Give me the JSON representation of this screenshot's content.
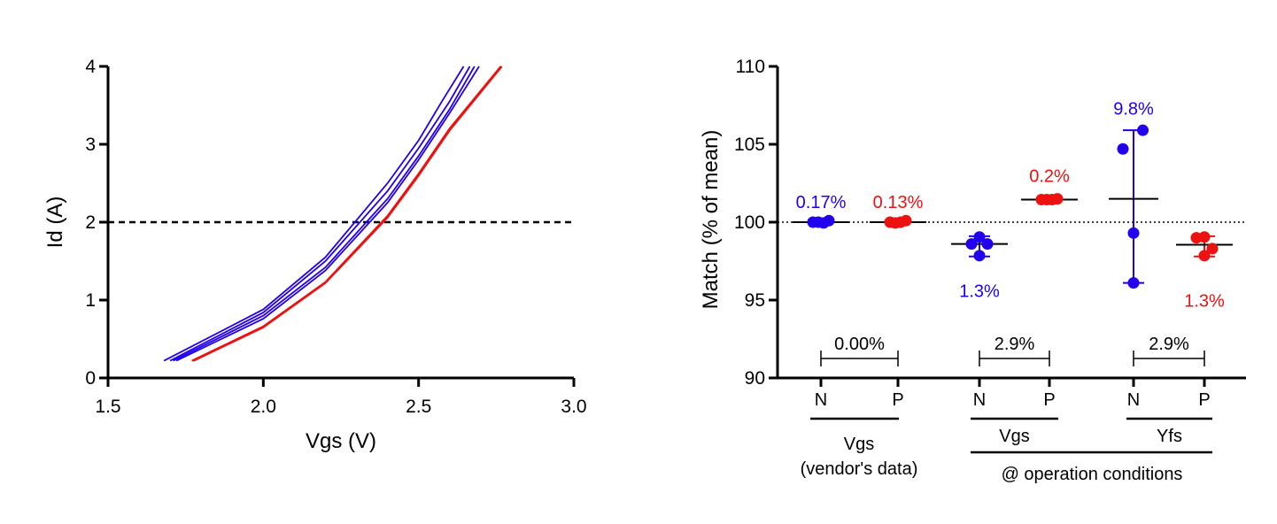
{
  "colors": {
    "n_type": "#2200ee",
    "p_type": "#ee1111",
    "axis": "#000000"
  },
  "chart_data": [
    {
      "type": "line",
      "xlabel": "Vgs (V)",
      "ylabel": "Id (A)",
      "xlim": [
        1.5,
        3.0
      ],
      "ylim": [
        0,
        4
      ],
      "x_ticks": [
        "1.5",
        "2.0",
        "2.5",
        "3.0"
      ],
      "y_ticks": [
        "0",
        "1",
        "2",
        "3",
        "4"
      ],
      "reference_line": {
        "y": 2,
        "style": "dashed"
      },
      "series": [
        {
          "type": "N",
          "color": "#2200ee",
          "points": [
            [
              1.68,
              0.22
            ],
            [
              2.0,
              0.88
            ],
            [
              2.2,
              1.55
            ],
            [
              2.4,
              2.5
            ],
            [
              2.5,
              3.05
            ],
            [
              2.575,
              3.55
            ],
            [
              2.645,
              4.0
            ]
          ]
        },
        {
          "type": "N",
          "color": "#2200ee",
          "points": [
            [
              1.7,
              0.22
            ],
            [
              2.0,
              0.84
            ],
            [
              2.2,
              1.5
            ],
            [
              2.4,
              2.4
            ],
            [
              2.5,
              2.95
            ],
            [
              2.6,
              3.55
            ],
            [
              2.665,
              4.0
            ]
          ]
        },
        {
          "type": "N",
          "color": "#2200ee",
          "points": [
            [
              1.71,
              0.22
            ],
            [
              2.0,
              0.8
            ],
            [
              2.2,
              1.42
            ],
            [
              2.4,
              2.3
            ],
            [
              2.5,
              2.85
            ],
            [
              2.6,
              3.45
            ],
            [
              2.68,
              4.0
            ]
          ]
        },
        {
          "type": "N",
          "color": "#2200ee",
          "points": [
            [
              1.72,
              0.22
            ],
            [
              2.0,
              0.76
            ],
            [
              2.2,
              1.38
            ],
            [
              2.4,
              2.25
            ],
            [
              2.5,
              2.8
            ],
            [
              2.6,
              3.4
            ],
            [
              2.695,
              4.0
            ]
          ]
        },
        {
          "type": "P",
          "color": "#ee1111",
          "points": [
            [
              1.77,
              0.22
            ],
            [
              2.0,
              0.66
            ],
            [
              2.2,
              1.23
            ],
            [
              2.4,
              2.08
            ],
            [
              2.5,
              2.62
            ],
            [
              2.6,
              3.2
            ],
            [
              2.765,
              4.0
            ]
          ]
        },
        {
          "type": "P",
          "color": "#ee1111",
          "points": [
            [
              1.775,
              0.22
            ],
            [
              2.0,
              0.65
            ],
            [
              2.2,
              1.22
            ],
            [
              2.4,
              2.06
            ],
            [
              2.5,
              2.6
            ],
            [
              2.6,
              3.18
            ],
            [
              2.768,
              4.0
            ]
          ]
        }
      ]
    },
    {
      "type": "scatter",
      "ylabel": "Match (% of mean)",
      "ylim": [
        90,
        110
      ],
      "y_ticks": [
        "90",
        "95",
        "100",
        "105",
        "110"
      ],
      "reference_line": {
        "y": 100,
        "style": "dotted"
      },
      "groups": [
        {
          "label": "N",
          "color": "#2200ee",
          "points": [
            [
              -0.3,
              100.0
            ],
            [
              -0.1,
              100.0
            ],
            [
              0.1,
              99.95
            ],
            [
              0.3,
              100.1
            ]
          ],
          "mean": 100.0,
          "spread_label": "0.17%"
        },
        {
          "label": "P",
          "color": "#ee1111",
          "points": [
            [
              -0.3,
              100.0
            ],
            [
              -0.1,
              99.95
            ],
            [
              0.1,
              100.0
            ],
            [
              0.3,
              100.1
            ]
          ],
          "mean": 100.0,
          "spread_label": "0.13%"
        },
        {
          "label": "N",
          "color": "#2200ee",
          "points": [
            [
              -0.3,
              98.6
            ],
            [
              0.0,
              99.05
            ],
            [
              0.0,
              97.85
            ],
            [
              0.3,
              98.6
            ]
          ],
          "mean": 98.6,
          "error": [
            97.8,
            99.1
          ],
          "spread_label": "1.3%"
        },
        {
          "label": "P",
          "color": "#ee1111",
          "points": [
            [
              -0.3,
              101.45
            ],
            [
              -0.1,
              101.45
            ],
            [
              0.1,
              101.45
            ],
            [
              0.3,
              101.5
            ]
          ],
          "mean": 101.45,
          "spread_label": "0.2%"
        },
        {
          "label": "N",
          "color": "#2200ee",
          "points": [
            [
              -0.4,
              104.7
            ],
            [
              0.35,
              105.9
            ],
            [
              0.0,
              99.3
            ],
            [
              0.0,
              96.1
            ]
          ],
          "mean": 101.5,
          "error": [
            96.1,
            105.9
          ],
          "spread_label": "9.8%"
        },
        {
          "label": "P",
          "color": "#ee1111",
          "points": [
            [
              -0.3,
              99.0
            ],
            [
              0.0,
              99.05
            ],
            [
              0.0,
              97.85
            ],
            [
              0.3,
              98.3
            ]
          ],
          "mean": 98.55,
          "error": [
            97.8,
            99.1
          ],
          "spread_label": "1.3%"
        }
      ],
      "np_differences": [
        "0.00%",
        "2.9%",
        "2.9%"
      ],
      "x_group_labels": [
        {
          "lines": [
            "Vgs",
            "(vendor's data)"
          ]
        },
        {
          "lines": [
            "Vgs"
          ]
        },
        {
          "lines": [
            "Yfs"
          ]
        }
      ],
      "shared_label": "@ operation conditions"
    }
  ]
}
